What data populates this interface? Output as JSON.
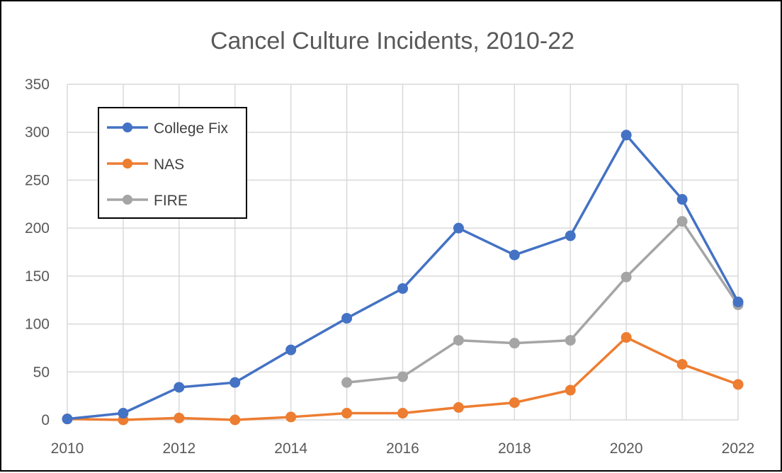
{
  "chart_data": {
    "type": "line",
    "title": "Cancel Culture Incidents, 2010-22",
    "xlabel": "",
    "ylabel": "",
    "x": [
      2010,
      2011,
      2012,
      2013,
      2014,
      2015,
      2016,
      2017,
      2018,
      2019,
      2020,
      2021,
      2022
    ],
    "xlim": [
      2010,
      2022
    ],
    "ylim": [
      0,
      350
    ],
    "x_ticks": [
      2010,
      2012,
      2014,
      2016,
      2018,
      2020,
      2022
    ],
    "y_ticks": [
      0,
      50,
      100,
      150,
      200,
      250,
      300,
      350
    ],
    "grid": true,
    "legend_position": "top-left",
    "series": [
      {
        "name": "College Fix",
        "color": "#4472c4",
        "values": [
          1,
          7,
          34,
          39,
          73,
          106,
          137,
          200,
          172,
          192,
          297,
          230,
          123
        ]
      },
      {
        "name": "NAS",
        "color": "#ed7d31",
        "values": [
          1,
          0,
          2,
          0,
          3,
          7,
          7,
          13,
          18,
          31,
          86,
          58,
          37
        ]
      },
      {
        "name": "FIRE",
        "color": "#a5a5a5",
        "values": [
          null,
          null,
          null,
          null,
          null,
          39,
          45,
          83,
          80,
          83,
          149,
          207,
          120
        ]
      }
    ]
  }
}
